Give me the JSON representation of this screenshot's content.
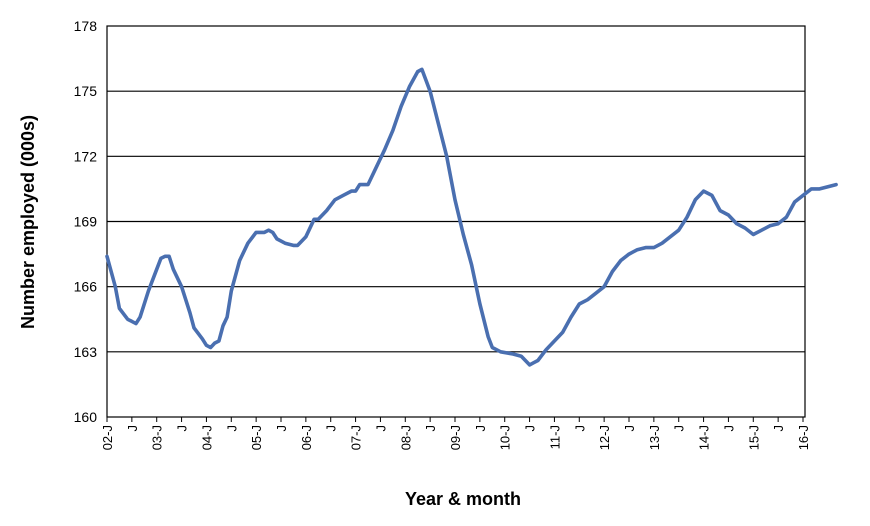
{
  "chart_data": {
    "type": "line",
    "title": "",
    "xlabel": "Year & month",
    "ylabel": "Number employed (000s)",
    "ylim": [
      160,
      178
    ],
    "yticks": [
      "160",
      "163",
      "166",
      "169",
      "172",
      "175",
      "178"
    ],
    "grid": "horizontal",
    "legend": "none",
    "x_tick_labels": [
      "02-J",
      "J",
      "03-J",
      "J",
      "04-J",
      "J",
      "05-J",
      "J",
      "06-J",
      "J",
      "07-J",
      "J",
      "08-J",
      "J",
      "09-J",
      "J",
      "10-J",
      "J",
      "11-J",
      "J",
      "12-J",
      "J",
      "13-J",
      "J",
      "14-J",
      "J",
      "15-J",
      "J",
      "16-J"
    ],
    "x_range": [
      "2002-01",
      "2016-01"
    ],
    "series": [
      {
        "color": "#4A6FB0",
        "points": [
          [
            "2002-01",
            167.4
          ],
          [
            "2002-03",
            166.0
          ],
          [
            "2002-04",
            165.0
          ],
          [
            "2002-06",
            164.5
          ],
          [
            "2002-07",
            164.4
          ],
          [
            "2002-08",
            164.3
          ],
          [
            "2002-09",
            164.6
          ],
          [
            "2002-11",
            165.8
          ],
          [
            "2003-01",
            166.8
          ],
          [
            "2003-02",
            167.3
          ],
          [
            "2003-03",
            167.4
          ],
          [
            "2003-04",
            167.4
          ],
          [
            "2003-05",
            166.8
          ],
          [
            "2003-07",
            166.0
          ],
          [
            "2003-09",
            164.8
          ],
          [
            "2003-10",
            164.1
          ],
          [
            "2003-12",
            163.6
          ],
          [
            "2004-01",
            163.3
          ],
          [
            "2004-02",
            163.2
          ],
          [
            "2004-03",
            163.4
          ],
          [
            "2004-04",
            163.5
          ],
          [
            "2004-05",
            164.2
          ],
          [
            "2004-06",
            164.6
          ],
          [
            "2004-07",
            165.8
          ],
          [
            "2004-09",
            167.2
          ],
          [
            "2004-11",
            168.0
          ],
          [
            "2005-01",
            168.5
          ],
          [
            "2005-03",
            168.5
          ],
          [
            "2005-04",
            168.6
          ],
          [
            "2005-05",
            168.5
          ],
          [
            "2005-06",
            168.2
          ],
          [
            "2005-08",
            168.0
          ],
          [
            "2005-10",
            167.9
          ],
          [
            "2005-11",
            167.9
          ],
          [
            "2006-01",
            168.3
          ],
          [
            "2006-03",
            169.1
          ],
          [
            "2006-04",
            169.1
          ],
          [
            "2006-06",
            169.5
          ],
          [
            "2006-08",
            170.0
          ],
          [
            "2006-10",
            170.2
          ],
          [
            "2006-12",
            170.4
          ],
          [
            "2007-01",
            170.4
          ],
          [
            "2007-02",
            170.7
          ],
          [
            "2007-04",
            170.7
          ],
          [
            "2007-06",
            171.5
          ],
          [
            "2007-08",
            172.3
          ],
          [
            "2007-10",
            173.2
          ],
          [
            "2007-12",
            174.3
          ],
          [
            "2008-02",
            175.2
          ],
          [
            "2008-04",
            175.9
          ],
          [
            "2008-05",
            176.0
          ],
          [
            "2008-07",
            175.0
          ],
          [
            "2008-09",
            173.5
          ],
          [
            "2008-11",
            172.0
          ],
          [
            "2009-01",
            170.0
          ],
          [
            "2009-03",
            168.4
          ],
          [
            "2009-05",
            167.0
          ],
          [
            "2009-07",
            165.2
          ],
          [
            "2009-09",
            163.7
          ],
          [
            "2009-10",
            163.2
          ],
          [
            "2009-12",
            163.0
          ],
          [
            "2010-03",
            162.9
          ],
          [
            "2010-05",
            162.8
          ],
          [
            "2010-07",
            162.4
          ],
          [
            "2010-08",
            162.5
          ],
          [
            "2010-09",
            162.6
          ],
          [
            "2010-11",
            163.1
          ],
          [
            "2011-01",
            163.5
          ],
          [
            "2011-03",
            163.9
          ],
          [
            "2011-05",
            164.6
          ],
          [
            "2011-07",
            165.2
          ],
          [
            "2011-09",
            165.4
          ],
          [
            "2011-11",
            165.7
          ],
          [
            "2012-01",
            166.0
          ],
          [
            "2012-03",
            166.7
          ],
          [
            "2012-05",
            167.2
          ],
          [
            "2012-07",
            167.5
          ],
          [
            "2012-09",
            167.7
          ],
          [
            "2012-11",
            167.8
          ],
          [
            "2013-01",
            167.8
          ],
          [
            "2013-03",
            168.0
          ],
          [
            "2013-05",
            168.3
          ],
          [
            "2013-07",
            168.6
          ],
          [
            "2013-09",
            169.2
          ],
          [
            "2013-11",
            170.0
          ],
          [
            "2014-01",
            170.4
          ],
          [
            "2014-03",
            170.2
          ],
          [
            "2014-05",
            169.5
          ],
          [
            "2014-07",
            169.3
          ],
          [
            "2014-09",
            168.9
          ],
          [
            "2014-11",
            168.7
          ],
          [
            "2015-01",
            168.4
          ],
          [
            "2015-03",
            168.6
          ],
          [
            "2015-05",
            168.8
          ],
          [
            "2015-07",
            168.9
          ],
          [
            "2015-09",
            169.2
          ],
          [
            "2015-11",
            169.9
          ],
          [
            "2016-01",
            170.2
          ],
          [
            "2016-03",
            170.5
          ],
          [
            "2016-05",
            170.5
          ],
          [
            "2016-07",
            170.6
          ],
          [
            "2016-09",
            170.7
          ]
        ]
      }
    ]
  }
}
